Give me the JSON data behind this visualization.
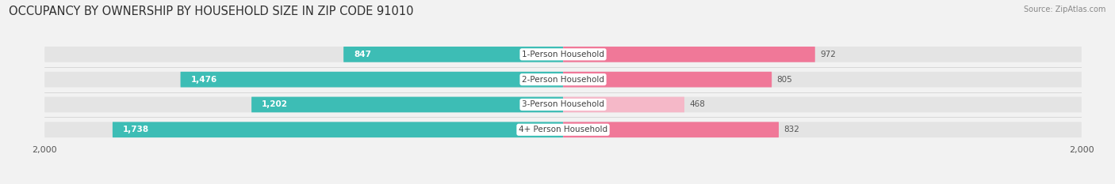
{
  "title": "OCCUPANCY BY OWNERSHIP BY HOUSEHOLD SIZE IN ZIP CODE 91010",
  "source": "Source: ZipAtlas.com",
  "categories": [
    "1-Person Household",
    "2-Person Household",
    "3-Person Household",
    "4+ Person Household"
  ],
  "owner_values": [
    847,
    1476,
    1202,
    1738
  ],
  "renter_values": [
    972,
    805,
    468,
    832
  ],
  "max_val": 2000,
  "owner_color": "#3DBDB5",
  "renter_color_0": "#F07898",
  "renter_color_1": "#F07898",
  "renter_color_2": "#F5B8C8",
  "renter_color_3": "#F07898",
  "bg_color": "#f2f2f2",
  "bar_bg_color": "#e4e4e4",
  "title_fontsize": 10.5,
  "label_fontsize": 7.5,
  "value_fontsize": 7.5,
  "tick_fontsize": 8,
  "source_fontsize": 7
}
